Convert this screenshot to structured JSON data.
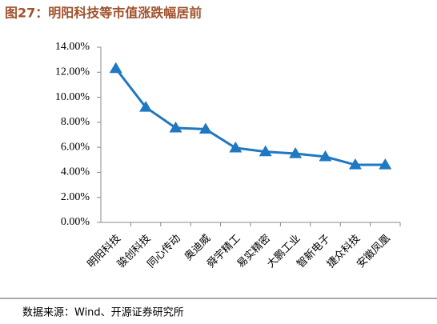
{
  "chart_data": {
    "type": "line",
    "title": "图27：明阳科技等市值涨跌幅居前",
    "source": "数据来源：Wind、开源证券研究所",
    "categories": [
      "明阳科技",
      "骏创科技",
      "同心传动",
      "奥迪威",
      "舜宇精工",
      "易实精密",
      "大鹏工业",
      "智新电子",
      "捷众科技",
      "安徽凤凰"
    ],
    "series": [
      {
        "name": "市值涨跌幅",
        "color": "#1f78c1",
        "values": [
          12.3,
          9.2,
          7.55,
          7.45,
          5.95,
          5.65,
          5.5,
          5.25,
          4.6,
          4.6
        ]
      }
    ],
    "ylim": [
      0,
      14
    ],
    "yticks": [
      {
        "value": 0,
        "label": "0.00%"
      },
      {
        "value": 2,
        "label": "2.00%"
      },
      {
        "value": 4,
        "label": "4.00%"
      },
      {
        "value": 6,
        "label": "6.00%"
      },
      {
        "value": 8,
        "label": "8.00%"
      },
      {
        "value": 10,
        "label": "10.00%"
      },
      {
        "value": 12,
        "label": "12.00%"
      },
      {
        "value": 14,
        "label": "14.00%"
      }
    ],
    "grid": false
  }
}
